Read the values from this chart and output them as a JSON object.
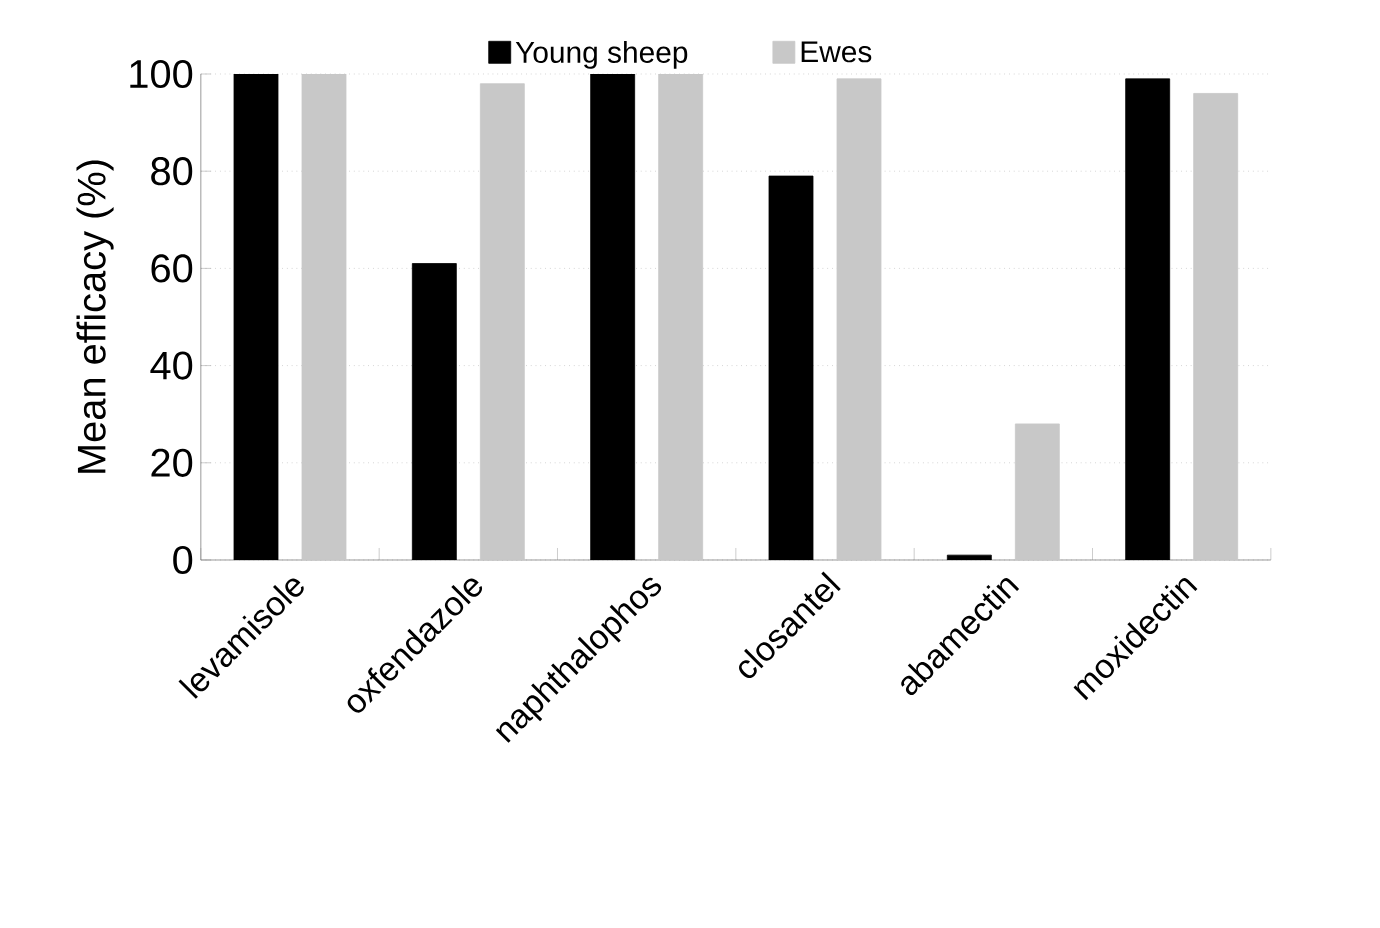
{
  "chart_data": {
    "type": "bar",
    "ylabel": "Mean efficacy (%)",
    "categories": [
      "levamisole",
      "oxfendazole",
      "naphthalophos",
      "closantel",
      "abamectin",
      "moxidectin"
    ],
    "series": [
      {
        "name": "Young sheep",
        "color": "#000000",
        "values": [
          100,
          61,
          100,
          79,
          1,
          99
        ]
      },
      {
        "name": "Ewes",
        "color": "#c8c8c8",
        "values": [
          100,
          98,
          100,
          99,
          28,
          96
        ]
      }
    ],
    "ylim": [
      0,
      100
    ],
    "yticks": [
      0,
      20,
      40,
      60,
      80,
      100
    ],
    "grid": "y",
    "legend": "top"
  }
}
